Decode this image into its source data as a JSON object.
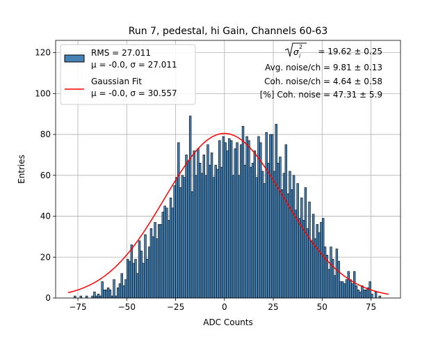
{
  "chart_data": {
    "type": "histogram",
    "title": "Run 7, pedestal, hi Gain, Channels 60-63",
    "xlabel": "ADC Counts",
    "ylabel": "Entries",
    "xlim": [
      -86.4,
      90.1
    ],
    "ylim": [
      0,
      126
    ],
    "grid": true,
    "legend_position": "top-left",
    "xticks": [
      -75,
      -50,
      -25,
      0,
      25,
      50,
      75
    ],
    "yticks": [
      0,
      20,
      40,
      60,
      80,
      100,
      120
    ],
    "bar_color": "#4682b4",
    "bar_edge_color": "#000000",
    "fit_color": "#ff0000",
    "legend": [
      {
        "label": "RMS = 27.011",
        "label2": "μ = -0.0, σ = 27.011",
        "kind": "bar"
      },
      {
        "label": "Gaussian Fit",
        "label2": "μ = -0.0, σ = 30.557",
        "kind": "line"
      }
    ],
    "fit": {
      "mu": 0.0,
      "sigma": 30.557,
      "amplitude": 80.5,
      "x_range": [
        -80,
        84
      ]
    },
    "annotations": [
      {
        "prefix": "",
        "text": "= 19.62 ± 0.25",
        "has_sqrt": true
      },
      {
        "text": "Avg. noise/ch = 9.81 ± 0.13"
      },
      {
        "text": "Coh. noise/ch = 4.64 ± 0.58"
      },
      {
        "text": "[%] Coh. noise = 47.31 ± 5.9"
      }
    ],
    "bins": {
      "x_start": -80,
      "bin_width": 1,
      "counts": [
        0,
        0,
        0,
        1,
        0,
        0,
        1,
        0,
        0,
        1,
        0,
        0,
        1,
        3,
        1,
        2,
        1,
        8,
        4,
        4,
        5,
        4,
        1,
        9,
        1,
        5,
        7,
        12,
        6,
        9,
        19,
        18,
        26,
        17,
        19,
        12,
        28,
        23,
        17,
        31,
        19,
        25,
        34,
        30,
        37,
        29,
        36,
        36,
        42,
        45,
        44,
        38,
        49,
        44,
        55,
        59,
        76,
        54,
        60,
        59,
        70,
        67,
        89,
        52,
        72,
        60,
        73,
        66,
        61,
        70,
        60,
        75,
        65,
        71,
        59,
        65,
        63,
        77,
        64,
        79,
        76,
        72,
        78,
        77,
        60,
        73,
        76,
        60,
        75,
        84,
        65,
        79,
        77,
        64,
        66,
        72,
        59,
        79,
        76,
        62,
        56,
        81,
        66,
        80,
        80,
        62,
        85,
        66,
        69,
        53,
        61,
        75,
        51,
        62,
        53,
        60,
        43,
        56,
        39,
        49,
        38,
        54,
        34,
        47,
        28,
        41,
        29,
        36,
        32,
        37,
        39,
        25,
        21,
        14,
        25,
        19,
        11,
        24,
        18,
        8,
        8,
        7,
        9,
        13,
        9,
        7,
        13,
        6,
        4,
        3,
        6,
        4,
        4,
        5,
        8,
        2,
        0,
        3,
        0,
        1,
        0,
        0,
        0,
        0
      ]
    }
  }
}
